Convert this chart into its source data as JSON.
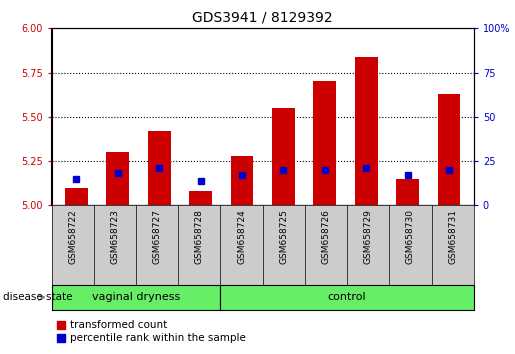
{
  "title": "GDS3941 / 8129392",
  "samples": [
    "GSM658722",
    "GSM658723",
    "GSM658727",
    "GSM658728",
    "GSM658724",
    "GSM658725",
    "GSM658726",
    "GSM658729",
    "GSM658730",
    "GSM658731"
  ],
  "red_values": [
    5.1,
    5.3,
    5.42,
    5.08,
    5.28,
    5.55,
    5.7,
    5.84,
    5.15,
    5.63
  ],
  "blue_percentiles": [
    15,
    18,
    21,
    14,
    17,
    20,
    20,
    21,
    17,
    20
  ],
  "group1_label": "vaginal dryness",
  "group1_count": 4,
  "group2_label": "control",
  "group2_count": 6,
  "group_color": "#66EE66",
  "group_border_color": "#000000",
  "ylim_left": [
    5.0,
    6.0
  ],
  "ylim_right": [
    0,
    100
  ],
  "yticks_left": [
    5.0,
    5.25,
    5.5,
    5.75,
    6.0
  ],
  "yticks_right": [
    0,
    25,
    50,
    75,
    100
  ],
  "bar_color": "#CC0000",
  "percentile_color": "#0000CC",
  "bar_width": 0.55,
  "bg_color": "#ffffff",
  "plot_bg": "#ffffff",
  "tick_bg": "#cccccc",
  "left_label_color": "#CC0000",
  "right_label_color": "#0000CC",
  "legend_items": [
    "transformed count",
    "percentile rank within the sample"
  ],
  "disease_label": "disease state",
  "title_fontsize": 10,
  "tick_fontsize": 7,
  "label_fontsize": 8
}
